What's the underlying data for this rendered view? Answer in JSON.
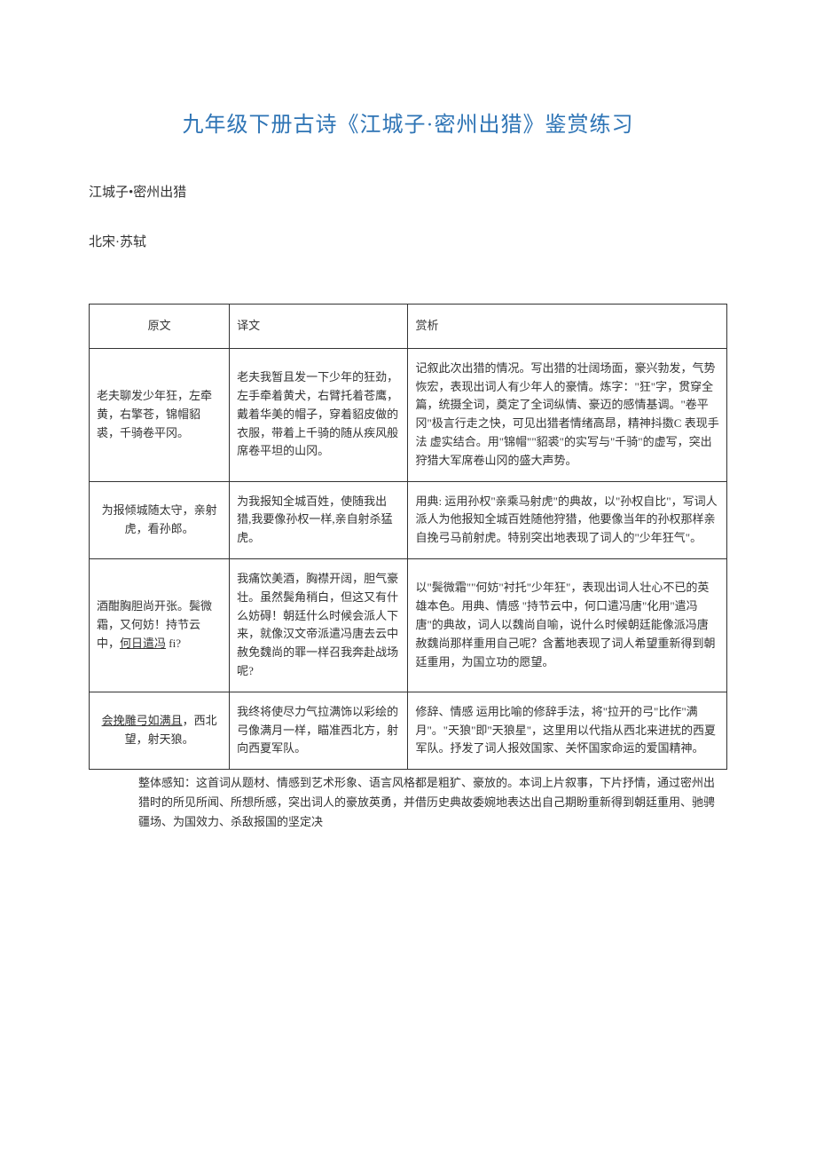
{
  "title": "九年级下册古诗《江城子·密州出猎》鉴赏练习",
  "subtitle": "江城子•密州出猎",
  "author": "北宋·苏轼",
  "table": {
    "headers": {
      "original": "原文",
      "translation": "译文",
      "appreciation": "赏析"
    },
    "rows": [
      {
        "original": "老夫聊发少年狂，左牵黄，右擎苍，锦帽貂裘，千骑卷平冈。",
        "translation": "老夫我暂且发一下少年的狂劲，左手牵着黄犬，右臂托着苍鹰，戴着华美的帽子，穿着貂皮做的衣服，带着上千骑的随从疾风般席卷平坦的山冈。",
        "appreciation": "记叙此次出猎的情况。写出猎的壮阔场面，豪兴勃发，气势恢宏，表现出词人有少年人的豪情。炼字：\"狂\"字，贯穿全篇，统摄全词，奠定了全词纵情、豪迈的感情基调。\"卷平冈\"极言行走之快，可见出猎者情绪高昂，精神抖擞C 表现手法 虚实结合。用\"锦帽\"\"貂裘\"的实写与\"千骑\"的虚写，突出狩猎大军席卷山冈的盛大声势。"
      },
      {
        "original": "为报倾城随太守，亲射虎，看孙郎。",
        "translation": "为我报知全城百姓，使随我出猎,我要像孙权一样,亲自射杀猛虎。",
        "appreciation": "用典: 运用孙权\"亲乘马射虎\"的典故，以\"孙权自比\"，写词人派人为他报知全城百姓随他狩猎，他要像当年的孙权那样亲自挽弓马前射虎。特别突出地表现了词人的\"少年狂气\"。"
      },
      {
        "original_parts": {
          "p1": "酒酣胸胆尚开张。鬓微霜，又何妨！持节云中，",
          "p2_underline": "何日遣冯",
          "p3": " fi?"
        },
        "translation": "我痛饮美酒，胸襟开阔，胆气豪壮。虽然鬓角稍白，但这又有什么妨碍！朝廷什么时候会派人下来，就像汉文帝派遣冯唐去云中赦免魏尚的罪一样召我奔赴战场呢?",
        "appreciation": "以\"鬓微霜\"\"何妨\"衬托\"少年狂\"，表现出词人壮心不已的英雄本色。用典、情感 \"持节云中，何口遣冯唐\"化用\"遣冯唐\"的典故，词人以魏尚自喻，说什么时候朝廷能像派冯唐赦魏尚那样重用自己呢？含蓄地表现了词人希望重新得到朝廷重用，为国立功的愿望。"
      },
      {
        "original_parts": {
          "p1_underline": "会挽雕弓如满且",
          "p2": "，西北望，射天狼。"
        },
        "translation": "我终将使尽力气拉满饰以彩绘的弓像满月一样，瞄准西北方，射向西夏军队。",
        "appreciation": "修辞、情感 运用比喻的修辞手法，将\"拉开的弓\"比作\"满月\"。\"天狼\"即\"天狼星\"，这里用以代指从西北来进扰的西夏军队。抒发了词人报效国家、关怀国家命运的爱国精神。"
      }
    ]
  },
  "notes": "整体感知：这首词从题材、情感到艺术形象、语言风格都是粗犷、豪放的。本词上片叙事，下片抒情，通过密州出猎时的所见所闻、所想所感，突出词人的豪放英勇，并借历史典故委婉地表达出自己期盼重新得到朝廷重用、驰骋疆场、为国效力、杀敌报国的坚定决",
  "styling": {
    "title_color": "#2e74b5",
    "title_fontsize": 24,
    "body_fontsize": 13,
    "border_color": "#333333",
    "background_color": "#ffffff",
    "col_widths": [
      "22%",
      "28%",
      "50%"
    ]
  }
}
